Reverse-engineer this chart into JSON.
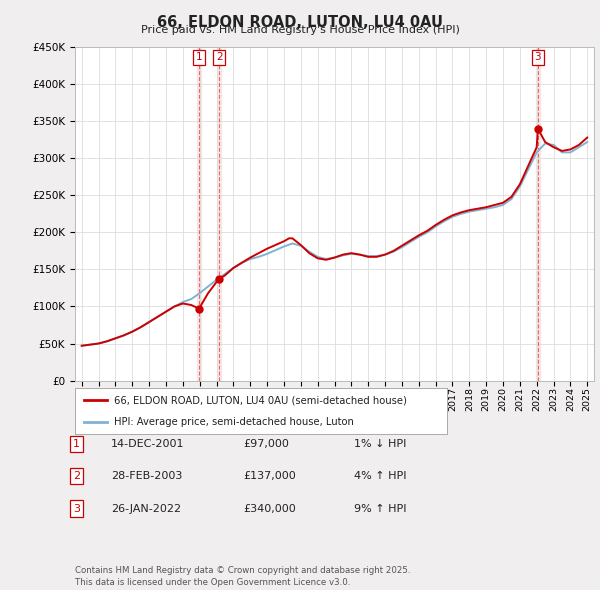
{
  "title": "66, ELDON ROAD, LUTON, LU4 0AU",
  "subtitle": "Price paid vs. HM Land Registry's House Price Index (HPI)",
  "ylim": [
    0,
    450000
  ],
  "yticks": [
    0,
    50000,
    100000,
    150000,
    200000,
    250000,
    300000,
    350000,
    400000,
    450000
  ],
  "ytick_labels": [
    "£0",
    "£50K",
    "£100K",
    "£150K",
    "£200K",
    "£250K",
    "£300K",
    "£350K",
    "£400K",
    "£450K"
  ],
  "line_color_actual": "#cc0000",
  "line_color_hpi": "#7fb3d3",
  "bg_color": "#f0eeee",
  "plot_bg_color": "#ffffff",
  "sale_points": [
    {
      "date": 2001.96,
      "price": 97000,
      "label": "1"
    },
    {
      "date": 2003.16,
      "price": 137000,
      "label": "2"
    },
    {
      "date": 2022.07,
      "price": 340000,
      "label": "3"
    }
  ],
  "legend_actual": "66, ELDON ROAD, LUTON, LU4 0AU (semi-detached house)",
  "legend_hpi": "HPI: Average price, semi-detached house, Luton",
  "table_rows": [
    {
      "num": "1",
      "date": "14-DEC-2001",
      "price": "£97,000",
      "change": "1% ↓ HPI"
    },
    {
      "num": "2",
      "date": "28-FEB-2003",
      "price": "£137,000",
      "change": "4% ↑ HPI"
    },
    {
      "num": "3",
      "date": "26-JAN-2022",
      "price": "£340,000",
      "change": "9% ↑ HPI"
    }
  ],
  "footer": "Contains HM Land Registry data © Crown copyright and database right 2025.\nThis data is licensed under the Open Government Licence v3.0.",
  "hpi_x": [
    1995.0,
    1995.5,
    1996.0,
    1996.5,
    1997.0,
    1997.5,
    1998.0,
    1998.5,
    1999.0,
    1999.5,
    2000.0,
    2000.5,
    2001.0,
    2001.5,
    2002.0,
    2002.5,
    2003.0,
    2003.5,
    2004.0,
    2004.5,
    2005.0,
    2005.5,
    2006.0,
    2006.5,
    2007.0,
    2007.5,
    2008.0,
    2008.5,
    2009.0,
    2009.5,
    2010.0,
    2010.5,
    2011.0,
    2011.5,
    2012.0,
    2012.5,
    2013.0,
    2013.5,
    2014.0,
    2014.5,
    2015.0,
    2015.5,
    2016.0,
    2016.5,
    2017.0,
    2017.5,
    2018.0,
    2018.5,
    2019.0,
    2019.5,
    2020.0,
    2020.5,
    2021.0,
    2021.5,
    2022.0,
    2022.5,
    2023.0,
    2023.5,
    2024.0,
    2024.5,
    2025.0
  ],
  "hpi_y": [
    47000,
    48500,
    50000,
    53000,
    57000,
    61000,
    66000,
    72000,
    79000,
    86000,
    93000,
    100000,
    106000,
    110000,
    118000,
    127000,
    136000,
    144000,
    152000,
    159000,
    164000,
    167000,
    171000,
    176000,
    181000,
    185000,
    182000,
    174000,
    167000,
    164000,
    166000,
    169000,
    171000,
    170000,
    168000,
    168000,
    170000,
    174000,
    180000,
    187000,
    194000,
    200000,
    208000,
    215000,
    221000,
    225000,
    228000,
    230000,
    232000,
    234000,
    237000,
    245000,
    262000,
    285000,
    308000,
    320000,
    318000,
    308000,
    308000,
    315000,
    322000
  ],
  "actual_x": [
    1995.0,
    1995.5,
    1996.0,
    1996.5,
    1997.0,
    1997.5,
    1998.0,
    1998.5,
    1999.0,
    1999.5,
    2000.0,
    2000.5,
    2001.0,
    2001.5,
    2001.96,
    2002.5,
    2003.0,
    2003.16,
    2003.5,
    2004.0,
    2004.5,
    2005.0,
    2005.5,
    2006.0,
    2006.5,
    2007.0,
    2007.3,
    2007.5,
    2008.0,
    2008.5,
    2009.0,
    2009.5,
    2010.0,
    2010.5,
    2011.0,
    2011.5,
    2012.0,
    2012.5,
    2013.0,
    2013.5,
    2014.0,
    2014.5,
    2015.0,
    2015.5,
    2016.0,
    2016.5,
    2017.0,
    2017.5,
    2018.0,
    2018.5,
    2019.0,
    2019.5,
    2020.0,
    2020.5,
    2021.0,
    2021.5,
    2022.0,
    2022.07,
    2022.5,
    2023.0,
    2023.5,
    2024.0,
    2024.5,
    2025.0
  ],
  "actual_y": [
    47000,
    48500,
    50000,
    53000,
    57000,
    61000,
    66000,
    72000,
    79000,
    86000,
    93000,
    100000,
    104000,
    102000,
    97000,
    118000,
    133000,
    137000,
    142000,
    152000,
    159000,
    166000,
    172000,
    178000,
    183000,
    188000,
    192000,
    192000,
    183000,
    172000,
    165000,
    163000,
    166000,
    170000,
    172000,
    170000,
    167000,
    167000,
    170000,
    175000,
    182000,
    189000,
    196000,
    202000,
    210000,
    217000,
    223000,
    227000,
    230000,
    232000,
    234000,
    237000,
    240000,
    248000,
    265000,
    290000,
    315000,
    340000,
    322000,
    315000,
    310000,
    312000,
    318000,
    328000
  ]
}
